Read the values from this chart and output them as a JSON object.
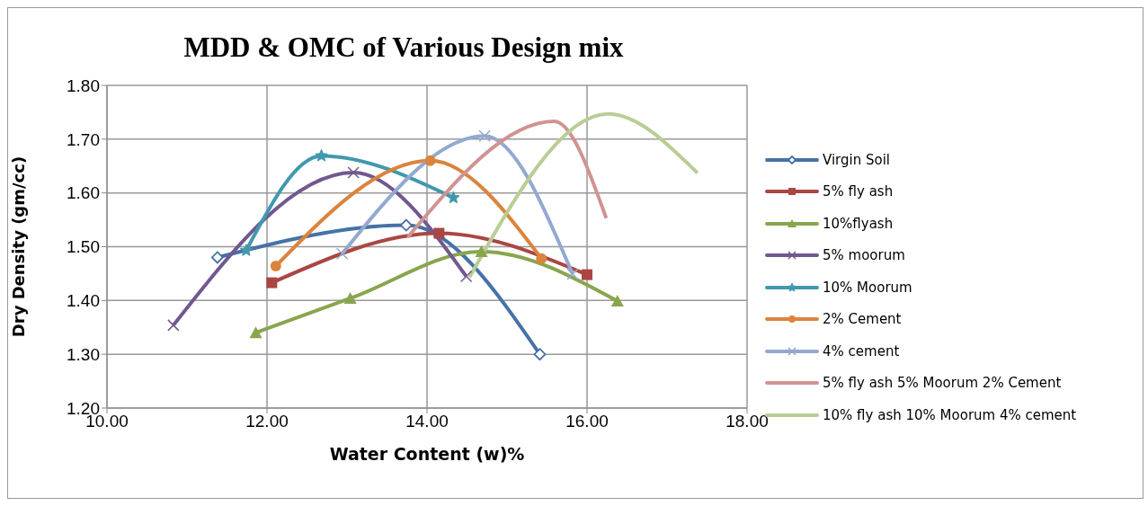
{
  "chart_data": {
    "type": "line",
    "title": "MDD & OMC of Various Design mix",
    "xlabel": "Water  Content (w)%",
    "ylabel": "Dry Density (gm/cc)",
    "xlim": [
      10,
      18
    ],
    "xticks": [
      {
        "value": 10,
        "label": "10.00"
      },
      {
        "value": 12,
        "label": "12.00"
      },
      {
        "value": 14,
        "label": "14.00"
      },
      {
        "value": 16,
        "label": "16.00"
      },
      {
        "value": 18,
        "label": "18.00"
      }
    ],
    "ylim": [
      1.2,
      1.8
    ],
    "yticks": [
      {
        "value": 1.2,
        "label": "1.20"
      },
      {
        "value": 1.3,
        "label": "1.30"
      },
      {
        "value": 1.4,
        "label": "1.40"
      },
      {
        "value": 1.5,
        "label": "1.50"
      },
      {
        "value": 1.6,
        "label": "1.60"
      },
      {
        "value": 1.7,
        "label": "1.70"
      },
      {
        "value": 1.8,
        "label": "1.80"
      }
    ],
    "grid": true,
    "legend": "right",
    "series": [
      {
        "name": "Virgin Soil",
        "color": "#4572a7",
        "marker": "diamond",
        "x": [
          11.38,
          13.74,
          15.41
        ],
        "values": [
          1.48,
          1.54,
          1.3
        ]
      },
      {
        "name": "5% fly ash",
        "color": "#aa4643",
        "marker": "square",
        "x": [
          12.06,
          14.15,
          16.0
        ],
        "values": [
          1.433,
          1.525,
          1.448
        ]
      },
      {
        "name": "10%flyash",
        "color": "#89a54e",
        "marker": "triangle",
        "x": [
          11.86,
          13.04,
          14.68,
          16.38
        ],
        "values": [
          1.34,
          1.404,
          1.491,
          1.399
        ]
      },
      {
        "name": "5% moorum",
        "color": "#71588f",
        "marker": "cross",
        "x": [
          10.83,
          13.08,
          14.49
        ],
        "values": [
          1.354,
          1.638,
          1.445
        ]
      },
      {
        "name": "10% Moorum",
        "color": "#4198af",
        "marker": "star",
        "x": [
          11.74,
          12.68,
          14.33
        ],
        "values": [
          1.493,
          1.669,
          1.591
        ]
      },
      {
        "name": "2% Cement",
        "color": "#db843d",
        "marker": "circle",
        "x": [
          12.11,
          14.04,
          15.43
        ],
        "values": [
          1.464,
          1.66,
          1.478
        ]
      },
      {
        "name": "4% cement",
        "color": "#93a9cf",
        "marker": "cross",
        "x": [
          12.94,
          14.72,
          15.82
        ],
        "values": [
          1.487,
          1.706,
          1.449
        ]
      },
      {
        "name": "5% fly ash 5% Moorum 2% Cement",
        "color": "#d19392",
        "marker": "none",
        "x": [
          13.76,
          15.59,
          16.24
        ],
        "values": [
          1.518,
          1.733,
          1.553
        ]
      },
      {
        "name": "10% fly ash 10% Moorum 4% cement",
        "color": "#b9cd96",
        "marker": "none",
        "x": [
          14.53,
          16.26,
          17.38
        ],
        "values": [
          1.443,
          1.747,
          1.637
        ]
      }
    ]
  }
}
